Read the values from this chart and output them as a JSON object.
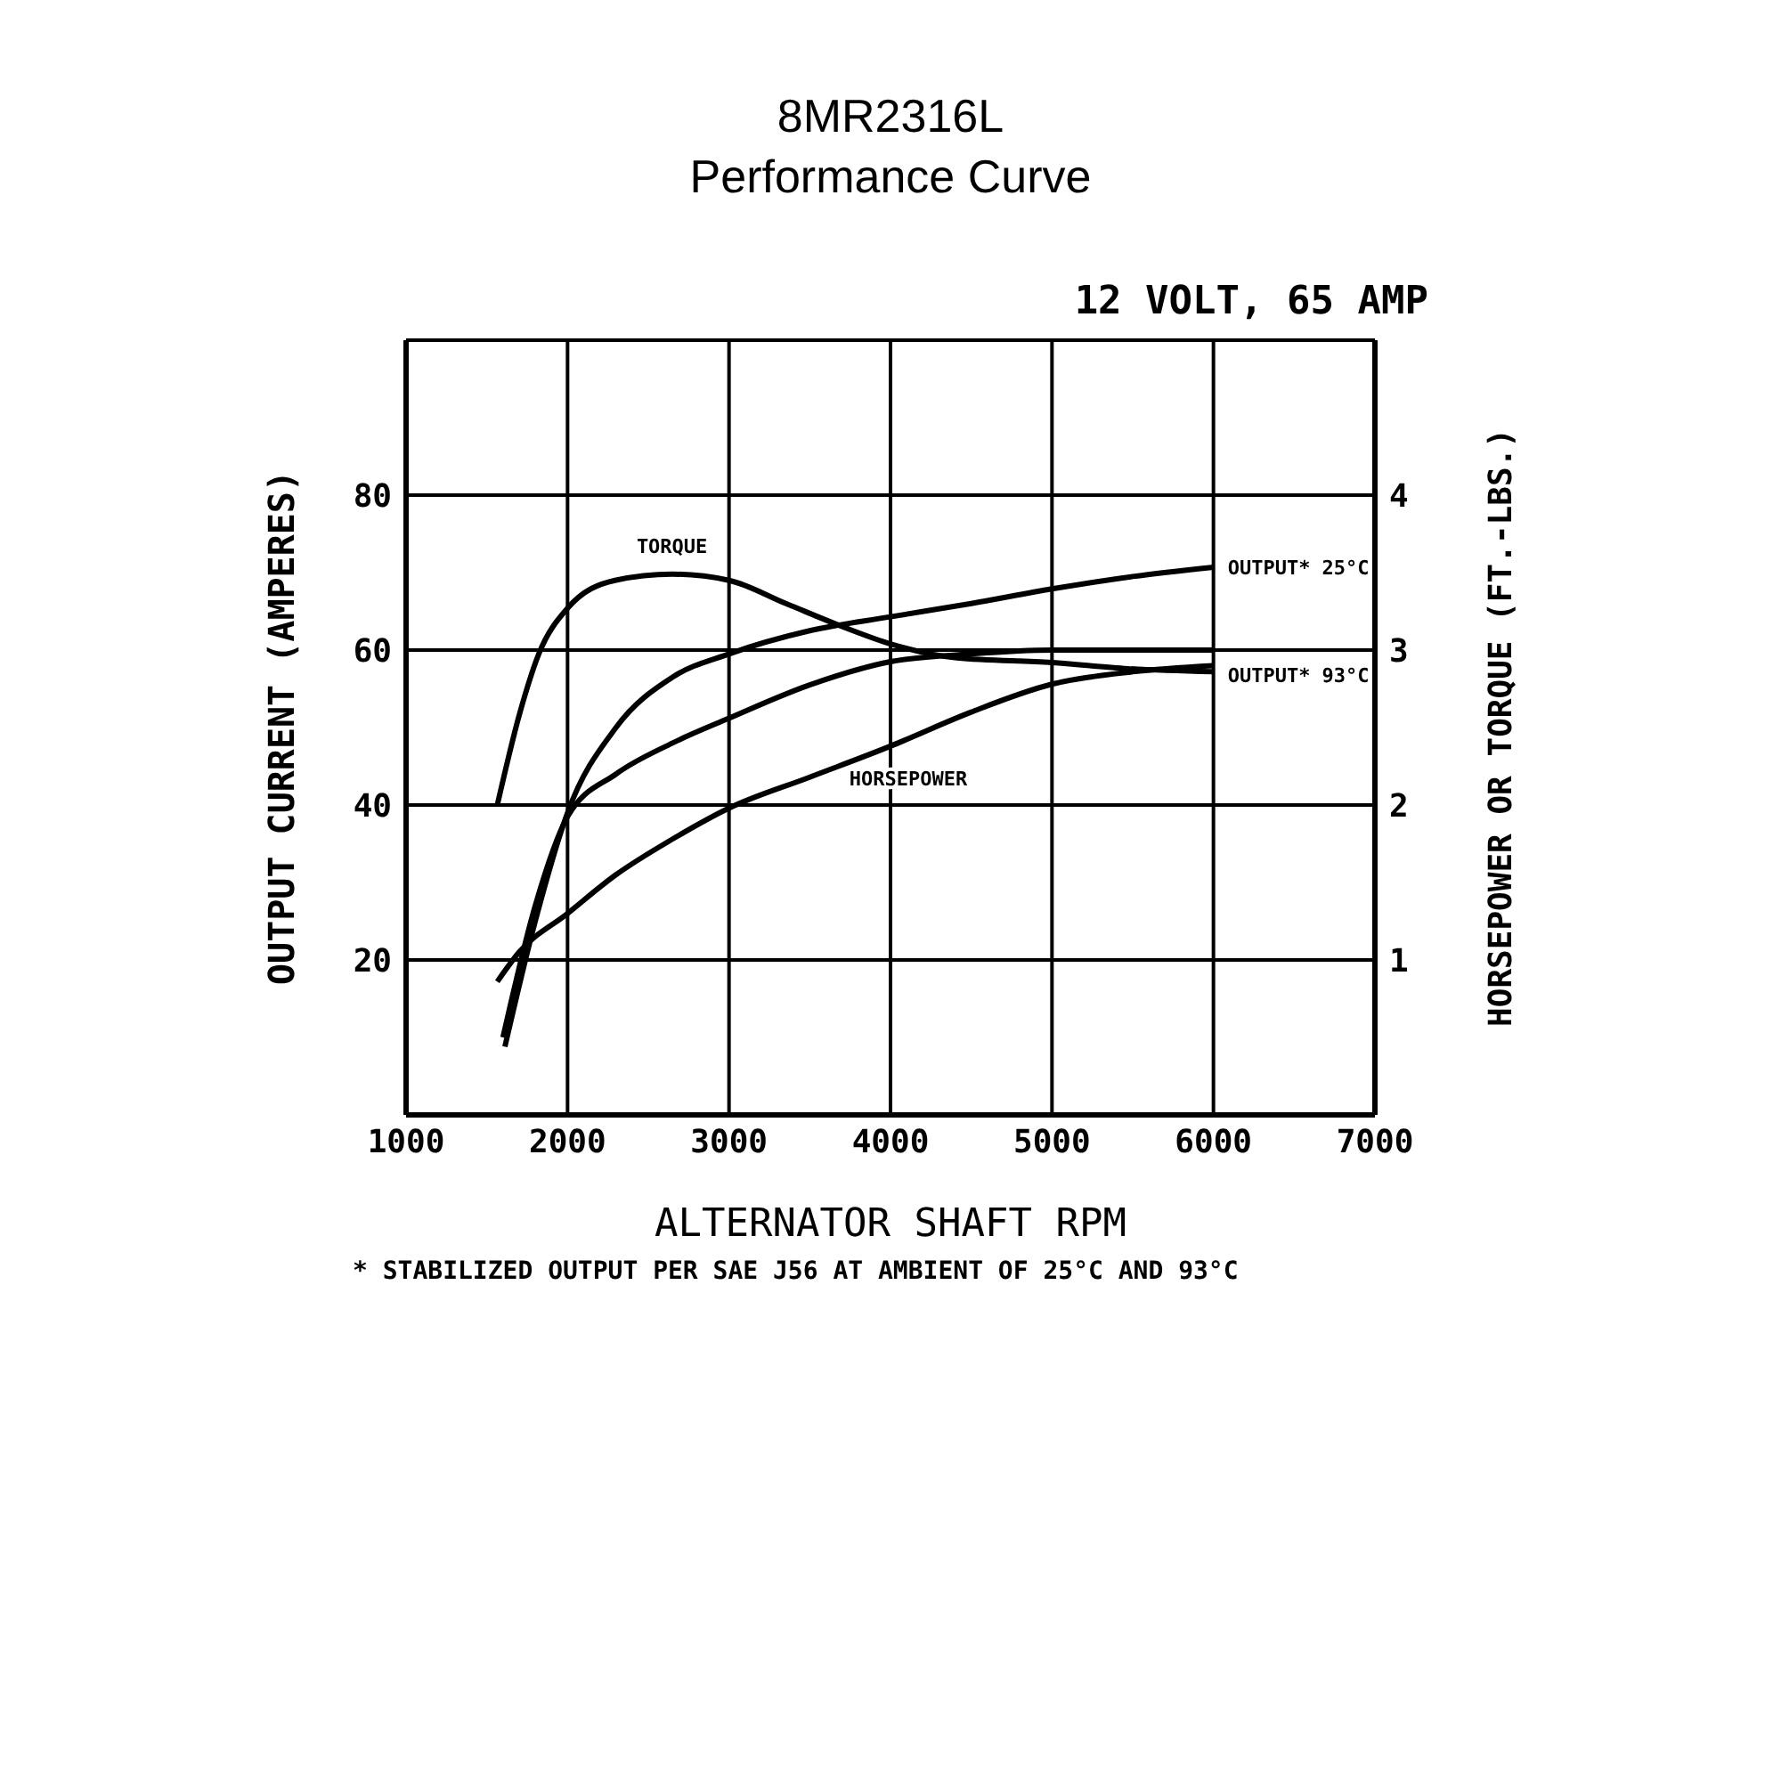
{
  "chart_data": {
    "type": "line",
    "title": "8MR2316L",
    "subtitle": "Performance Curve",
    "xlabel": "ALTERNATOR SHAFT RPM",
    "ylabel": "OUTPUT CURRENT (AMPERES)",
    "y2label": "HORSEPOWER OR TORQUE (FT.-LBS.)",
    "annotations": [
      "12 VOLT, 65 AMP",
      "* STABILIZED OUTPUT PER SAE J56 AT AMBIENT OF 25°C AND 93°C"
    ],
    "xlim": [
      1000,
      7000
    ],
    "xticks": [
      1000,
      2000,
      3000,
      4000,
      5000,
      6000,
      7000
    ],
    "ylim": [
      0,
      100
    ],
    "yticks": [
      20,
      40,
      60,
      80
    ],
    "y2lim": [
      0,
      5
    ],
    "y2ticks": [
      1,
      2,
      3,
      4
    ],
    "grid": true,
    "marker": "none",
    "line_style": "solid",
    "series": [
      {
        "name": "TORQUE",
        "color": "#000000",
        "axis": "y2",
        "x": [
          1565,
          1706,
          1824,
          2000,
          2294,
          2647,
          3000,
          3353,
          3706,
          4000,
          4412,
          5000,
          5470,
          6000
        ],
        "values": [
          2.0,
          2.6,
          2.98,
          3.27,
          3.45,
          3.49,
          3.45,
          3.3,
          3.15,
          3.04,
          2.95,
          2.92,
          2.88,
          2.86
        ]
      },
      {
        "name": "OUTPUT* 25°C",
        "color": "#000000",
        "x": [
          1612,
          1800,
          2000,
          2300,
          2650,
          3000,
          3500,
          4000,
          4500,
          5000,
          5500,
          6000
        ],
        "values": [
          8.8,
          25,
          39,
          50,
          56.5,
          59.5,
          62.5,
          64.3,
          66,
          67.9,
          69.5,
          70.7
        ]
      },
      {
        "name": "OUTPUT* 93°C",
        "color": "#000000",
        "x": [
          1600,
          1800,
          2000,
          2300,
          2650,
          3000,
          3500,
          4000,
          4500,
          5000,
          5500,
          6000
        ],
        "values": [
          10,
          27,
          38.5,
          44,
          48,
          51.2,
          55.5,
          58.5,
          59.5,
          60,
          60,
          60
        ]
      },
      {
        "name": "HORSEPOWER",
        "color": "#000000",
        "axis": "y2",
        "x": [
          1565,
          1700,
          2000,
          2300,
          2650,
          3000,
          3500,
          4000,
          4500,
          5000,
          5500,
          6000
        ],
        "values": [
          0.86,
          1.05,
          1.3,
          1.55,
          1.78,
          1.98,
          2.18,
          2.38,
          2.6,
          2.78,
          2.86,
          2.9
        ]
      }
    ]
  }
}
